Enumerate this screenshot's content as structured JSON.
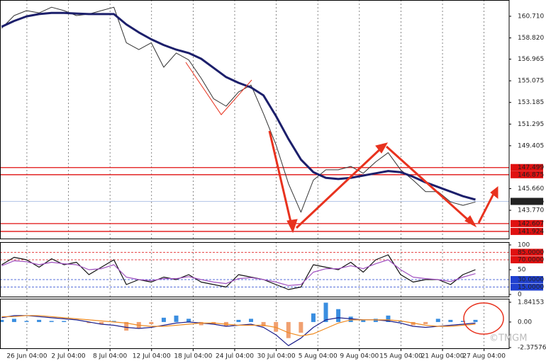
{
  "chart_data": [
    {
      "type": "line",
      "xlim": [
        -3.4,
        119.1
      ],
      "x": [
        -3,
        0,
        3,
        6,
        9,
        12,
        15,
        18,
        21,
        24,
        27,
        30,
        33,
        36,
        39,
        42,
        45,
        48,
        51,
        54,
        57,
        60,
        63,
        66,
        69,
        72,
        75,
        78,
        81,
        84,
        87,
        90,
        93,
        96,
        99,
        102,
        105,
        108,
        111
      ],
      "series": [
        {
          "color": "#333333",
          "values": [
            159.66,
            160.77,
            161.2,
            161.0,
            161.5,
            161.2,
            160.77,
            160.9,
            161.2,
            161.5,
            158.4,
            157.8,
            158.4,
            156.26,
            157.5,
            156.9,
            155.3,
            153.5,
            152.86,
            154.1,
            154.7,
            152.2,
            149.5,
            146.1,
            143.6,
            146.4,
            147.3,
            147.3,
            147.6,
            147.0,
            148.0,
            148.8,
            147.3,
            146.4,
            145.4,
            145.4,
            144.5,
            144.2,
            144.5
          ]
        },
        {
          "color": "#1c1f6b",
          "values": [
            159.8,
            160.3,
            160.7,
            160.9,
            161.0,
            161.0,
            160.95,
            160.9,
            160.9,
            160.9,
            160.0,
            159.3,
            158.7,
            158.2,
            157.8,
            157.5,
            157.0,
            156.2,
            155.4,
            154.9,
            154.5,
            153.8,
            152.0,
            150.0,
            148.2,
            147.1,
            146.6,
            146.5,
            146.6,
            146.8,
            147.0,
            147.2,
            147.1,
            146.7,
            146.2,
            145.8,
            145.4,
            145.0,
            144.7
          ]
        }
      ],
      "ylim": [
        141.24,
        162.13
      ],
      "yticks": [
        {
          "value": 160.71,
          "label": "160.710"
        },
        {
          "value": 158.82,
          "label": "158.820"
        },
        156.965,
        155.075,
        153.185,
        151.295,
        149.405,
        {
          "value": 145.66,
          "label": "145.660"
        },
        {
          "value": 143.77,
          "label": "143.770"
        }
      ],
      "levels": [
        {
          "value": 147.499,
          "color": "#e01010"
        },
        {
          "value": 146.875,
          "color": "#e01010"
        },
        {
          "value": 142.607,
          "color": "#e01010"
        },
        {
          "value": 141.924,
          "color": "#e01010"
        }
      ],
      "price_line": {
        "value": 144.546,
        "color": "#9db3e0"
      }
    },
    {
      "type": "line",
      "xlim": [
        -3.4,
        119.1
      ],
      "x": [
        -3,
        0,
        3,
        6,
        9,
        12,
        15,
        18,
        21,
        24,
        27,
        30,
        33,
        36,
        39,
        42,
        45,
        48,
        51,
        54,
        57,
        60,
        63,
        66,
        69,
        72,
        75,
        78,
        81,
        84,
        87,
        90,
        93,
        96,
        99,
        102,
        105,
        108,
        111
      ],
      "series": [
        {
          "color": "#111111",
          "values": [
            60,
            75,
            70,
            55,
            72,
            60,
            65,
            40,
            55,
            70,
            20,
            30,
            25,
            35,
            30,
            40,
            25,
            20,
            15,
            40,
            35,
            30,
            20,
            10,
            15,
            60,
            55,
            50,
            65,
            45,
            70,
            80,
            40,
            25,
            30,
            30,
            20,
            40,
            50
          ]
        },
        {
          "color": "#a050c0",
          "values": [
            58,
            68,
            66,
            60,
            65,
            62,
            60,
            50,
            52,
            60,
            35,
            30,
            28,
            32,
            32,
            36,
            30,
            25,
            22,
            32,
            34,
            30,
            25,
            18,
            20,
            45,
            52,
            52,
            58,
            52,
            62,
            70,
            50,
            35,
            32,
            30,
            26,
            35,
            42
          ]
        }
      ],
      "ylim": [
        -5.7,
        105.7
      ],
      "yticks": [
        100,
        50,
        0
      ],
      "levels": [
        {
          "value": 85,
          "label": "85.0000",
          "color": "#e01010"
        },
        {
          "value": 70,
          "label": "70.0000",
          "color": "#e01010"
        },
        {
          "value": 30,
          "label": "30.0000",
          "color": "#2040d0"
        },
        {
          "value": 15,
          "label": "15.0000",
          "color": "#2040d0"
        }
      ]
    },
    {
      "type": "combo",
      "xlim": [
        -3.4,
        119.1
      ],
      "x": [
        -3,
        0,
        3,
        6,
        9,
        12,
        15,
        18,
        21,
        24,
        27,
        30,
        33,
        36,
        39,
        42,
        45,
        48,
        51,
        54,
        57,
        60,
        63,
        66,
        69,
        72,
        75,
        78,
        81,
        84,
        87,
        90,
        93,
        96,
        99,
        102,
        105,
        108,
        111
      ],
      "values": [
        0.2,
        0.3,
        0.1,
        0.2,
        0.1,
        0.1,
        0.0,
        -0.1,
        -0.2,
        0.1,
        -0.8,
        -0.6,
        -0.2,
        0.4,
        0.6,
        0.3,
        -0.3,
        -0.2,
        -0.4,
        0.2,
        0.3,
        -0.4,
        -0.9,
        -1.5,
        -1.0,
        0.8,
        1.8,
        1.2,
        0.5,
        0.2,
        0.3,
        0.6,
        0.1,
        -0.3,
        -0.2,
        0.3,
        0.2,
        0.1,
        0.2
      ],
      "pos_color": "#3a8ee0",
      "neg_color": "#f0a070",
      "series": [
        {
          "color": "#1c1f8b",
          "values": [
            0.4,
            0.6,
            0.6,
            0.5,
            0.4,
            0.3,
            0.2,
            0.0,
            -0.2,
            -0.3,
            -0.5,
            -0.6,
            -0.5,
            -0.3,
            -0.1,
            0.0,
            -0.1,
            -0.2,
            -0.4,
            -0.3,
            -0.2,
            -0.5,
            -1.2,
            -2.2,
            -1.5,
            -0.5,
            0.2,
            0.4,
            0.3,
            0.2,
            0.2,
            0.1,
            -0.1,
            -0.4,
            -0.5,
            -0.4,
            -0.3,
            -0.2,
            -0.1
          ]
        },
        {
          "color": "#f08a20",
          "values": [
            0.5,
            0.5,
            0.6,
            0.6,
            0.5,
            0.4,
            0.3,
            0.2,
            0.1,
            0.0,
            -0.1,
            -0.3,
            -0.4,
            -0.4,
            -0.3,
            -0.2,
            -0.1,
            -0.1,
            -0.2,
            -0.3,
            -0.3,
            -0.3,
            -0.5,
            -1.0,
            -1.3,
            -1.1,
            -0.6,
            -0.1,
            0.2,
            0.2,
            0.2,
            0.2,
            0.1,
            -0.1,
            -0.3,
            -0.4,
            -0.4,
            -0.3,
            -0.2
          ]
        }
      ],
      "ylim": [
        -2.51,
        2.17
      ],
      "yticks": [
        1.84153,
        {
          "value": 0,
          "label": "0.00"
        },
        -2.37576
      ],
      "xticks": [
        {
          "value": 0,
          "label": "26 Jun 04:00"
        },
        {
          "value": 10,
          "label": "2 Jul 04:00"
        },
        {
          "value": 20,
          "label": "8 Jul 04:00"
        },
        {
          "value": 30,
          "label": "12 Jul 04:00"
        },
        {
          "value": 40,
          "label": "18 Jul 04:00"
        },
        {
          "value": 50,
          "label": "24 Jul 04:00"
        },
        {
          "value": 60,
          "label": "30 Jul 04:00"
        },
        {
          "value": 70,
          "label": "5 Aug 04:00"
        },
        {
          "value": 80,
          "label": "9 Aug 04:00"
        },
        {
          "value": 90,
          "label": "15 Aug 04:00"
        },
        {
          "value": 100,
          "label": "21 Aug 04:00"
        },
        {
          "value": 110,
          "label": "27 Aug 04:00"
        }
      ],
      "watermark": "©TMGM"
    }
  ]
}
